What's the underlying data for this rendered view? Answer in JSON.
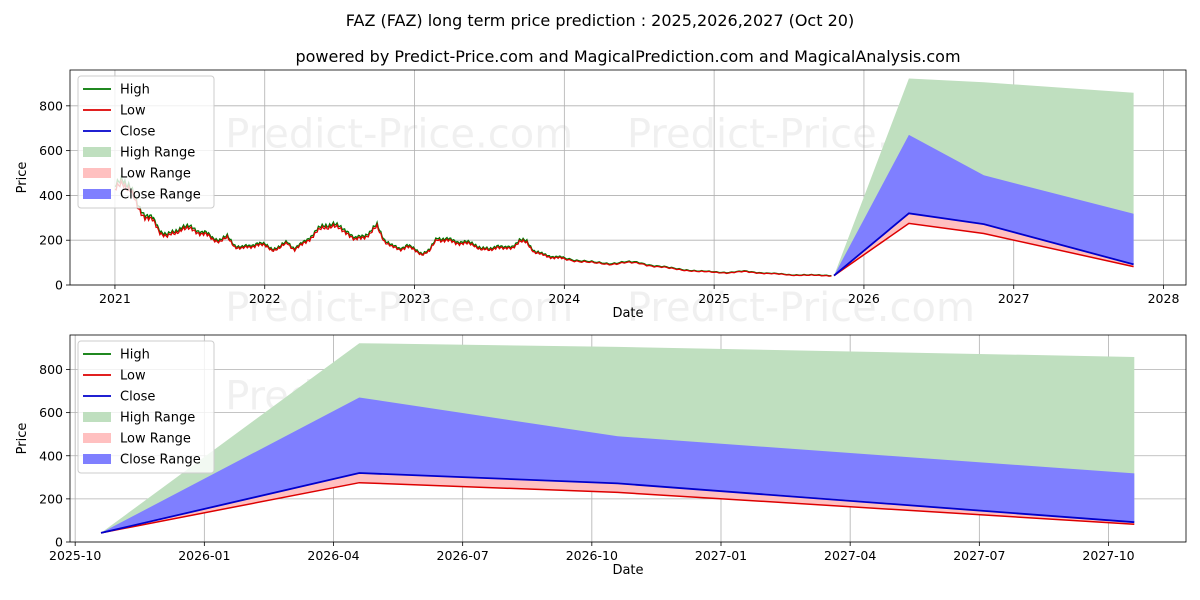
{
  "chart_data": {
    "type": "line",
    "title": "FAZ (FAZ) long term price prediction : 2025,2026,2027 (Oct 20)",
    "subtitle": "powered by Predict-Price.com and MagicalPrediction.com and MagicalAnalysis.com",
    "watermark": "Predict-Price.com",
    "colors": {
      "high": "#007700",
      "low": "#dd0000",
      "close": "#0000cc",
      "high_range": "#bfdfbf",
      "low_range": "#ffc0c0",
      "close_range": "#7f7fff"
    },
    "legend": {
      "placement": "top-left",
      "entries": [
        "High",
        "Low",
        "Close",
        "High Range",
        "Low Range",
        "Close Range"
      ]
    },
    "panels": [
      {
        "name": "full-history",
        "xlabel": "Date",
        "ylabel": "Price",
        "xlim": [
          2020.7,
          2028.15
        ],
        "ylim": [
          0,
          960
        ],
        "xticks": [
          2021,
          2022,
          2023,
          2024,
          2025,
          2026,
          2027,
          2028
        ],
        "xtick_labels": [
          "2021",
          "2022",
          "2023",
          "2024",
          "2025",
          "2026",
          "2027",
          "2028"
        ],
        "yticks": [
          0,
          200,
          400,
          600,
          800
        ],
        "ytick_labels": [
          "0",
          "200",
          "400",
          "600",
          "800"
        ],
        "grid": true
      },
      {
        "name": "forecast-zoom",
        "xlabel": "Date",
        "ylabel": "Price",
        "xlim": [
          2025.74,
          2027.9
        ],
        "ylim": [
          0,
          960
        ],
        "xticks": [
          2025.75,
          2026.0,
          2026.25,
          2026.5,
          2026.75,
          2027.0,
          2027.25,
          2027.5,
          2027.75
        ],
        "xtick_labels": [
          "2025-10",
          "2026-01",
          "2026-04",
          "2026-07",
          "2026-10",
          "2027-01",
          "2027-04",
          "2027-07",
          "2027-10"
        ],
        "yticks": [
          0,
          200,
          400,
          600,
          800
        ],
        "ytick_labels": [
          "0",
          "200",
          "400",
          "600",
          "800"
        ],
        "grid": true
      }
    ],
    "history": {
      "x": [
        2021.0,
        2021.05,
        2021.1,
        2021.15,
        2021.2,
        2021.25,
        2021.3,
        2021.35,
        2021.4,
        2021.45,
        2021.5,
        2021.55,
        2021.6,
        2021.65,
        2021.7,
        2021.75,
        2021.8,
        2021.85,
        2021.9,
        2021.95,
        2022.0,
        2022.05,
        2022.1,
        2022.15,
        2022.2,
        2022.25,
        2022.3,
        2022.35,
        2022.4,
        2022.45,
        2022.5,
        2022.55,
        2022.6,
        2022.65,
        2022.7,
        2022.75,
        2022.8,
        2022.85,
        2022.9,
        2022.95,
        2023.0,
        2023.05,
        2023.1,
        2023.15,
        2023.2,
        2023.25,
        2023.3,
        2023.35,
        2023.4,
        2023.45,
        2023.5,
        2023.55,
        2023.6,
        2023.65,
        2023.7,
        2023.75,
        2023.8,
        2023.85,
        2023.9,
        2023.95,
        2024.0,
        2024.1,
        2024.2,
        2024.3,
        2024.4,
        2024.5,
        2024.6,
        2024.7,
        2024.8,
        2024.9,
        2025.0,
        2025.1,
        2025.2,
        2025.3,
        2025.4,
        2025.5,
        2025.6,
        2025.7,
        2025.8
      ],
      "close": [
        420,
        470,
        430,
        350,
        310,
        290,
        240,
        220,
        230,
        260,
        250,
        240,
        230,
        205,
        200,
        210,
        175,
        165,
        170,
        185,
        175,
        160,
        165,
        190,
        160,
        180,
        210,
        240,
        260,
        270,
        250,
        240,
        200,
        215,
        230,
        260,
        200,
        170,
        160,
        175,
        155,
        140,
        150,
        210,
        200,
        195,
        190,
        185,
        180,
        160,
        155,
        175,
        160,
        170,
        195,
        190,
        150,
        135,
        128,
        122,
        118,
        108,
        98,
        95,
        100,
        98,
        85,
        75,
        68,
        60,
        58,
        55,
        60,
        55,
        50,
        45,
        45,
        42,
        42
      ]
    },
    "forecast": {
      "x": [
        2025.8,
        2026.3,
        2026.8,
        2027.8
      ],
      "close": [
        42,
        320,
        272,
        92
      ],
      "low": [
        42,
        275,
        230,
        82
      ],
      "high": [
        42,
        322,
        275,
        95
      ],
      "high_range_upper": [
        42,
        922,
        905,
        858
      ],
      "close_range_upper": [
        42,
        670,
        490,
        318
      ],
      "low_range_upper": [
        42,
        322,
        275,
        95
      ]
    }
  }
}
